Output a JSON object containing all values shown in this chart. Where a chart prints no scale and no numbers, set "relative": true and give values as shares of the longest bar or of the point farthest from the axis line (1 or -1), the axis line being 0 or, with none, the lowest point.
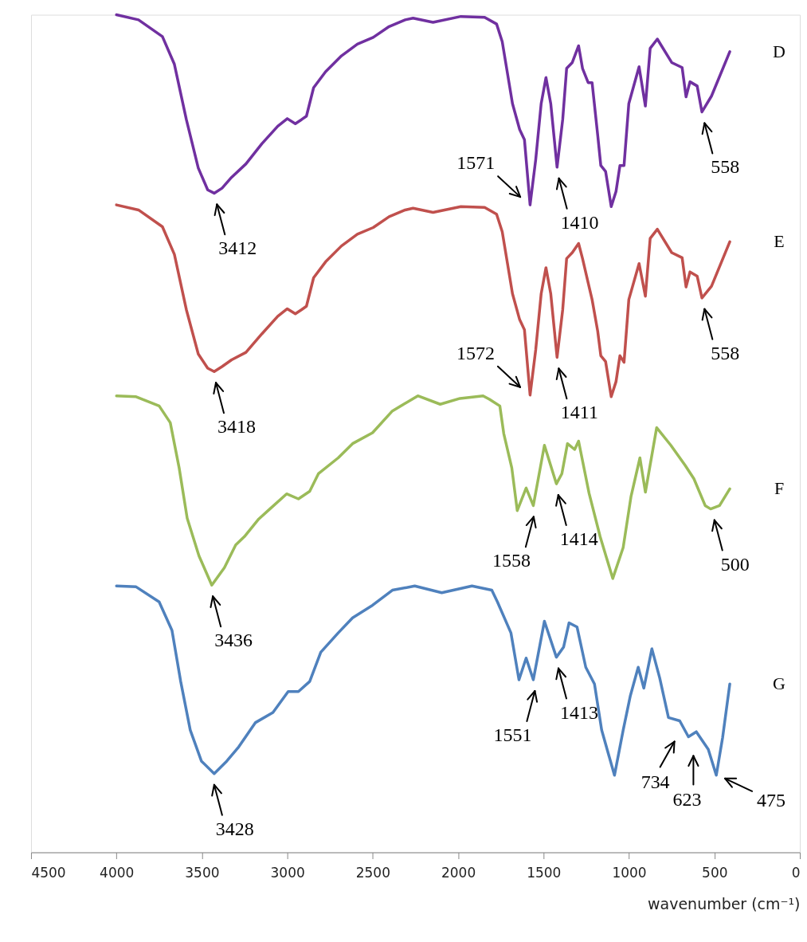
{
  "chart_data": {
    "type": "line",
    "relative": true,
    "xlabel": "wavenumber (cm⁻¹)",
    "xlim": [
      4500,
      0
    ],
    "xticks": [
      4500,
      4000,
      3500,
      3000,
      2500,
      2000,
      1500,
      1000,
      500,
      0
    ],
    "grid": false,
    "line_style": "solid",
    "marker": "none",
    "series": [
      {
        "name": "D",
        "color": "#7030a0",
        "x": [
          4000,
          3871,
          3731,
          3661,
          3591,
          3521,
          3466,
          3428,
          3382,
          3326,
          3242,
          3149,
          3056,
          3000,
          2953,
          2916,
          2888,
          2846,
          2776,
          2683,
          2590,
          2497,
          2404,
          2310,
          2264,
          2147,
          1984,
          1845,
          1775,
          1742,
          1682,
          1640,
          1612,
          1579,
          1546,
          1514,
          1486,
          1458,
          1421,
          1388,
          1365,
          1332,
          1295,
          1272,
          1239,
          1216,
          1183,
          1165,
          1137,
          1104,
          1076,
          1053,
          1029,
          1001,
          941,
          904,
          876,
          834,
          750,
          689,
          666,
          643,
          601,
          573,
          517,
          410
        ],
        "values": [
          1.0,
          0.994,
          0.974,
          0.941,
          0.875,
          0.817,
          0.791,
          0.787,
          0.793,
          0.806,
          0.822,
          0.846,
          0.867,
          0.876,
          0.87,
          0.875,
          0.879,
          0.913,
          0.932,
          0.951,
          0.965,
          0.973,
          0.986,
          0.994,
          0.996,
          0.991,
          0.998,
          0.997,
          0.989,
          0.968,
          0.894,
          0.863,
          0.851,
          0.773,
          0.827,
          0.894,
          0.925,
          0.894,
          0.818,
          0.875,
          0.936,
          0.943,
          0.963,
          0.936,
          0.919,
          0.919,
          0.856,
          0.82,
          0.813,
          0.771,
          0.789,
          0.82,
          0.82,
          0.894,
          0.938,
          0.891,
          0.96,
          0.971,
          0.943,
          0.937,
          0.902,
          0.92,
          0.915,
          0.884,
          0.903,
          0.956
        ]
      },
      {
        "name": "E",
        "color": "#c0504d",
        "x": [
          4000,
          3871,
          3731,
          3661,
          3591,
          3521,
          3466,
          3428,
          3382,
          3326,
          3242,
          3149,
          3056,
          3000,
          2953,
          2916,
          2888,
          2846,
          2776,
          2683,
          2590,
          2497,
          2404,
          2310,
          2264,
          2147,
          1984,
          1845,
          1775,
          1742,
          1682,
          1640,
          1612,
          1579,
          1546,
          1514,
          1486,
          1458,
          1421,
          1388,
          1365,
          1332,
          1295,
          1272,
          1239,
          1216,
          1183,
          1165,
          1137,
          1104,
          1076,
          1053,
          1029,
          1001,
          941,
          904,
          876,
          834,
          750,
          689,
          666,
          643,
          601,
          573,
          517,
          410
        ],
        "values": [
          0.773,
          0.767,
          0.747,
          0.714,
          0.648,
          0.595,
          0.578,
          0.574,
          0.58,
          0.588,
          0.597,
          0.619,
          0.64,
          0.649,
          0.643,
          0.648,
          0.652,
          0.686,
          0.705,
          0.724,
          0.738,
          0.746,
          0.759,
          0.767,
          0.769,
          0.764,
          0.771,
          0.77,
          0.762,
          0.741,
          0.667,
          0.636,
          0.624,
          0.546,
          0.6,
          0.667,
          0.698,
          0.667,
          0.591,
          0.648,
          0.709,
          0.716,
          0.727,
          0.709,
          0.68,
          0.66,
          0.622,
          0.593,
          0.586,
          0.544,
          0.562,
          0.593,
          0.585,
          0.66,
          0.703,
          0.664,
          0.733,
          0.744,
          0.716,
          0.71,
          0.675,
          0.693,
          0.688,
          0.662,
          0.676,
          0.729
        ]
      },
      {
        "name": "F",
        "color": "#9bbb59",
        "x": [
          4000,
          3885,
          3750,
          3685,
          3633,
          3586,
          3517,
          3442,
          3368,
          3302,
          3251,
          3167,
          3102,
          3004,
          2935,
          2869,
          2818,
          2702,
          2618,
          2501,
          2385,
          2236,
          2105,
          1989,
          1854,
          1817,
          1756,
          1733,
          1686,
          1654,
          1602,
          1560,
          1495,
          1425,
          1393,
          1360,
          1318,
          1295,
          1234,
          1169,
          1095,
          1034,
          988,
          936,
          904,
          838,
          755,
          671,
          620,
          554,
          522,
          470,
          410
        ],
        "values": [
          0.545,
          0.544,
          0.533,
          0.513,
          0.459,
          0.399,
          0.354,
          0.319,
          0.34,
          0.367,
          0.377,
          0.398,
          0.41,
          0.428,
          0.422,
          0.431,
          0.452,
          0.471,
          0.488,
          0.501,
          0.527,
          0.545,
          0.535,
          0.542,
          0.545,
          0.541,
          0.533,
          0.5,
          0.459,
          0.408,
          0.435,
          0.414,
          0.486,
          0.44,
          0.452,
          0.488,
          0.481,
          0.491,
          0.429,
          0.377,
          0.327,
          0.364,
          0.425,
          0.471,
          0.43,
          0.507,
          0.486,
          0.462,
          0.446,
          0.414,
          0.41,
          0.414,
          0.434
        ]
      },
      {
        "name": "G",
        "color": "#4f81bd",
        "x": [
          4000,
          3885,
          3750,
          3675,
          3624,
          3568,
          3503,
          3428,
          3354,
          3284,
          3186,
          3084,
          2995,
          2935,
          2869,
          2804,
          2702,
          2618,
          2501,
          2385,
          2254,
          2096,
          1919,
          1803,
          1770,
          1691,
          1644,
          1602,
          1560,
          1495,
          1425,
          1383,
          1351,
          1304,
          1253,
          1202,
          1160,
          1085,
          1034,
          992,
          946,
          913,
          866,
          820,
          769,
          703,
          652,
          606,
          536,
          489,
          452,
          410
        ],
        "values": [
          0.318,
          0.317,
          0.299,
          0.265,
          0.204,
          0.146,
          0.109,
          0.094,
          0.109,
          0.126,
          0.155,
          0.167,
          0.192,
          0.192,
          0.204,
          0.239,
          0.262,
          0.28,
          0.295,
          0.313,
          0.318,
          0.31,
          0.318,
          0.313,
          0.299,
          0.262,
          0.206,
          0.232,
          0.206,
          0.276,
          0.233,
          0.245,
          0.274,
          0.269,
          0.221,
          0.201,
          0.146,
          0.092,
          0.146,
          0.187,
          0.221,
          0.196,
          0.243,
          0.208,
          0.161,
          0.157,
          0.138,
          0.144,
          0.123,
          0.092,
          0.137,
          0.201
        ]
      }
    ],
    "annotations": [
      {
        "text": "3412",
        "x": 3412,
        "y": 0.787
      },
      {
        "text": "1571",
        "x": 1571,
        "y": 0.773
      },
      {
        "text": "1410",
        "x": 1410,
        "y": 0.818
      },
      {
        "text": "558",
        "x": 558,
        "y": 0.884
      },
      {
        "text": "3418",
        "x": 3418,
        "y": 0.574
      },
      {
        "text": "1572",
        "x": 1572,
        "y": 0.546
      },
      {
        "text": "1411",
        "x": 1411,
        "y": 0.591
      },
      {
        "text": "558",
        "x": 558,
        "y": 0.662
      },
      {
        "text": "3436",
        "x": 3436,
        "y": 0.319
      },
      {
        "text": "1558",
        "x": 1558,
        "y": 0.414
      },
      {
        "text": "1414",
        "x": 1414,
        "y": 0.44
      },
      {
        "text": "500",
        "x": 500,
        "y": 0.41
      },
      {
        "text": "3428",
        "x": 3428,
        "y": 0.094
      },
      {
        "text": "1551",
        "x": 1551,
        "y": 0.206
      },
      {
        "text": "1413",
        "x": 1413,
        "y": 0.233
      },
      {
        "text": "734",
        "x": 734,
        "y": 0.157
      },
      {
        "text": "623",
        "x": 623,
        "y": 0.138
      },
      {
        "text": "475",
        "x": 475,
        "y": 0.092
      }
    ]
  }
}
